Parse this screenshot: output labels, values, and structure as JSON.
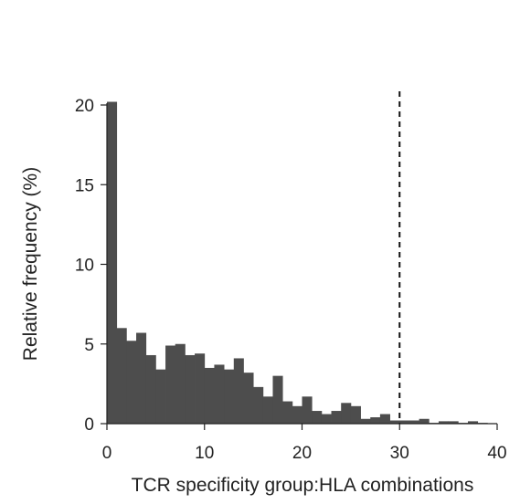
{
  "chart_data": {
    "type": "bar",
    "subtype": "histogram",
    "title": "",
    "xlabel": "TCR specificity group:HLA combinations",
    "ylabel": "Relative frequency (%)",
    "xlim": [
      0,
      40
    ],
    "ylim": [
      0,
      20
    ],
    "xticks": [
      0,
      10,
      20,
      30,
      40
    ],
    "yticks": [
      0,
      5,
      10,
      15,
      20
    ],
    "bin_width": 1,
    "bins": [
      0,
      1,
      2,
      3,
      4,
      5,
      6,
      7,
      8,
      9,
      10,
      11,
      12,
      13,
      14,
      15,
      16,
      17,
      18,
      19,
      20,
      21,
      22,
      23,
      24,
      25,
      26,
      27,
      28,
      29,
      30,
      31,
      32,
      33,
      34,
      35,
      36,
      37,
      38,
      39
    ],
    "values": [
      20.2,
      6.0,
      5.2,
      5.7,
      4.3,
      3.4,
      4.9,
      5.0,
      4.3,
      4.4,
      3.5,
      3.7,
      3.4,
      4.1,
      3.2,
      2.3,
      1.7,
      3.0,
      1.4,
      1.1,
      1.7,
      0.8,
      0.6,
      0.8,
      1.3,
      1.1,
      0.3,
      0.4,
      0.6,
      0.2,
      0.2,
      0.2,
      0.3,
      0.05,
      0.15,
      0.15,
      0.05,
      0.15,
      0.05,
      0.0
    ],
    "reference_line": {
      "x": 30,
      "style": "dashed"
    },
    "grid": false,
    "bar_color": "#4d4d4d",
    "axis_color": "#222222"
  }
}
